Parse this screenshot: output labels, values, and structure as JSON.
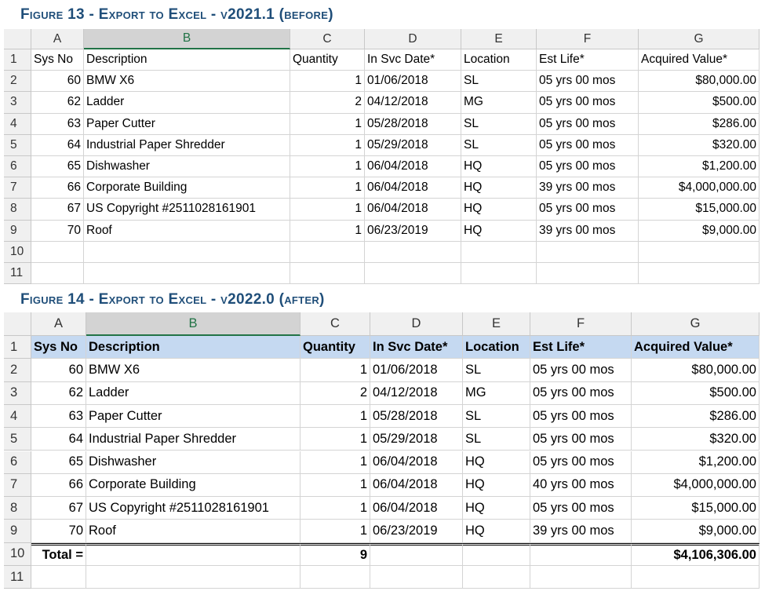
{
  "figures": [
    {
      "caption": "Figure 13 - Export to Excel - v2021.1 (before)",
      "columns": [
        "A",
        "B",
        "C",
        "D",
        "E",
        "F",
        "G"
      ],
      "row_numbers": [
        "1",
        "2",
        "3",
        "4",
        "5",
        "6",
        "7",
        "8",
        "9",
        "10",
        "11"
      ],
      "rows": [
        [
          "Sys No",
          "Description",
          "Quantity",
          "In Svc Date*",
          "Location",
          "Est Life*",
          "Acquired Value*"
        ],
        [
          "60",
          "BMW X6",
          "1",
          "01/06/2018",
          "SL",
          "05 yrs 00 mos",
          "$80,000.00"
        ],
        [
          "62",
          "Ladder",
          "2",
          "04/12/2018",
          "MG",
          "05 yrs 00 mos",
          "$500.00"
        ],
        [
          "63",
          "Paper Cutter",
          "1",
          "05/28/2018",
          "SL",
          "05 yrs 00 mos",
          "$286.00"
        ],
        [
          "64",
          "Industrial Paper Shredder",
          "1",
          "05/29/2018",
          "SL",
          "05 yrs 00 mos",
          "$320.00"
        ],
        [
          "65",
          "Dishwasher",
          "1",
          "06/04/2018",
          "HQ",
          "05 yrs 00 mos",
          "$1,200.00"
        ],
        [
          "66",
          "Corporate Building",
          "1",
          "06/04/2018",
          "HQ",
          "39 yrs 00 mos",
          "$4,000,000.00"
        ],
        [
          "67",
          "US Copyright #2511028161901",
          "1",
          "06/04/2018",
          "HQ",
          "05 yrs 00 mos",
          "$15,000.00"
        ],
        [
          "70",
          "Roof",
          "1",
          "06/23/2019",
          "HQ",
          "39 yrs 00 mos",
          "$9,000.00"
        ]
      ]
    },
    {
      "caption": "Figure 14 - Export to Excel - v2022.0 (after)",
      "columns": [
        "A",
        "B",
        "C",
        "D",
        "E",
        "F",
        "G"
      ],
      "row_numbers": [
        "1",
        "2",
        "3",
        "4",
        "5",
        "6",
        "7",
        "8",
        "9",
        "10",
        "11"
      ],
      "rows": [
        [
          "Sys No",
          "Description",
          "Quantity",
          "In Svc Date*",
          "Location",
          "Est Life*",
          "Acquired Value*"
        ],
        [
          "60",
          "BMW X6",
          "1",
          "01/06/2018",
          "SL",
          "05 yrs 00 mos",
          "$80,000.00"
        ],
        [
          "62",
          "Ladder",
          "2",
          "04/12/2018",
          "MG",
          "05 yrs 00 mos",
          "$500.00"
        ],
        [
          "63",
          "Paper Cutter",
          "1",
          "05/28/2018",
          "SL",
          "05 yrs 00 mos",
          "$286.00"
        ],
        [
          "64",
          "Industrial Paper Shredder",
          "1",
          "05/29/2018",
          "SL",
          "05 yrs 00 mos",
          "$320.00"
        ],
        [
          "65",
          "Dishwasher",
          "1",
          "06/04/2018",
          "HQ",
          "05 yrs 00 mos",
          "$1,200.00"
        ],
        [
          "66",
          "Corporate Building",
          "1",
          "06/04/2018",
          "HQ",
          "40 yrs 00 mos",
          "$4,000,000.00"
        ],
        [
          "67",
          "US Copyright #2511028161901",
          "1",
          "06/04/2018",
          "HQ",
          "05 yrs 00 mos",
          "$15,000.00"
        ],
        [
          "70",
          "Roof",
          "1",
          "06/23/2019",
          "HQ",
          "39 yrs 00 mos",
          "$9,000.00"
        ],
        [
          "Total =",
          null,
          "9",
          null,
          null,
          null,
          "$4,106,306.00"
        ]
      ]
    }
  ]
}
